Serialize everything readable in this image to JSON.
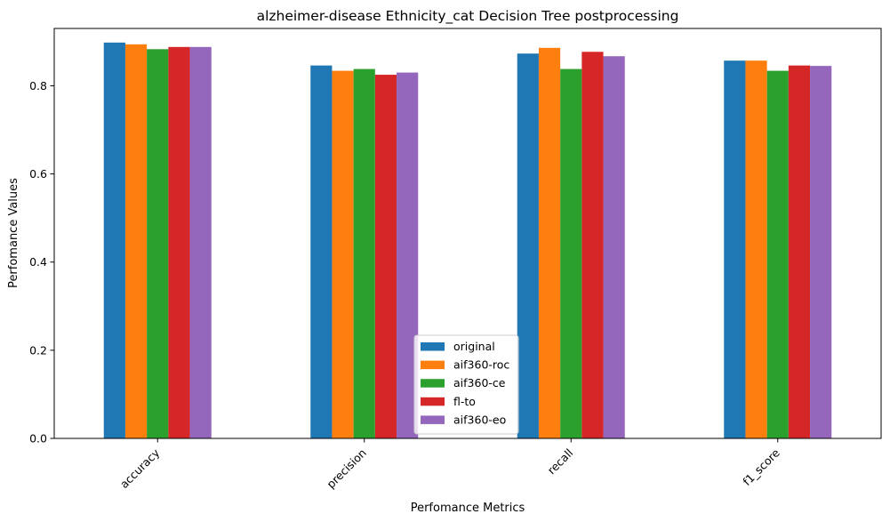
{
  "chart_data": {
    "type": "bar",
    "title": "alzheimer-disease Ethnicity_cat Decision Tree postprocessing",
    "xlabel": "Perfomance Metrics",
    "ylabel": "Perfomance Values",
    "categories": [
      "accuracy",
      "precision",
      "recall",
      "f1_score"
    ],
    "ylim": [
      0,
      0.93
    ],
    "yticks": [
      "0.0",
      "0.2",
      "0.4",
      "0.6",
      "0.8"
    ],
    "ytick_values": [
      0.0,
      0.2,
      0.4,
      0.6,
      0.8
    ],
    "grid": false,
    "legend_position": "lower center",
    "series": [
      {
        "name": "original",
        "color": "#1f77b4",
        "values": [
          0.898,
          0.846,
          0.873,
          0.857
        ]
      },
      {
        "name": "aif360-roc",
        "color": "#ff7f0e",
        "values": [
          0.894,
          0.834,
          0.886,
          0.857
        ]
      },
      {
        "name": "aif360-ce",
        "color": "#2ca02c",
        "values": [
          0.883,
          0.838,
          0.838,
          0.834
        ]
      },
      {
        "name": "fl-to",
        "color": "#d62728",
        "values": [
          0.888,
          0.825,
          0.877,
          0.846
        ]
      },
      {
        "name": "aif360-eo",
        "color": "#9467bd",
        "values": [
          0.888,
          0.83,
          0.867,
          0.845
        ]
      }
    ]
  }
}
